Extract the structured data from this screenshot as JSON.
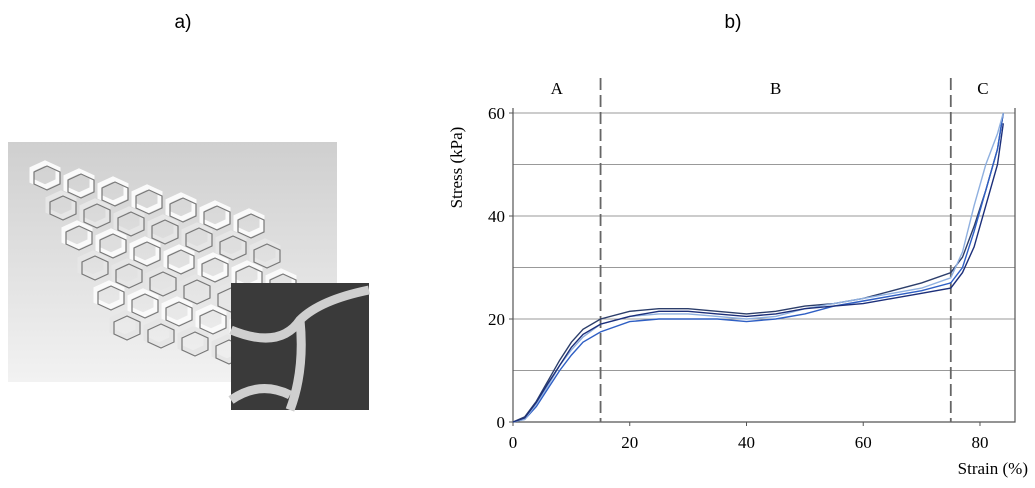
{
  "panels": [
    "a)",
    "b)"
  ],
  "chart_data": {
    "type": "line",
    "x_label": "Strain (%)",
    "y_label": "Stress (kPa)",
    "x": [
      0,
      2,
      4,
      6,
      8,
      10,
      12,
      15,
      20,
      25,
      30,
      35,
      40,
      45,
      50,
      55,
      60,
      65,
      70,
      75,
      77,
      79,
      81,
      83,
      84
    ],
    "series": [
      {
        "color": "#2c3e6b",
        "values": [
          0,
          1,
          4,
          8,
          12,
          15.5,
          18,
          20,
          21.5,
          22,
          22,
          21.5,
          21,
          21.5,
          22.5,
          23,
          24,
          25.5,
          27,
          29,
          32,
          38,
          45,
          53,
          60
        ]
      },
      {
        "color": "#2f5fc4",
        "values": [
          0,
          0.5,
          3,
          6.5,
          10,
          13,
          15.5,
          17.5,
          19.5,
          20,
          20,
          20,
          19.5,
          20,
          21,
          22.5,
          23.5,
          24.5,
          25.5,
          27,
          30,
          37,
          45,
          53,
          60
        ]
      },
      {
        "color": "#8fb0e0",
        "values": [
          0,
          0.5,
          3.5,
          7,
          11,
          14,
          16.5,
          19,
          20.5,
          21,
          21,
          20.5,
          20,
          20.5,
          22,
          23,
          24,
          25,
          26,
          28,
          33,
          42,
          50,
          56,
          60
        ]
      },
      {
        "color": "#1c2f7a",
        "values": [
          0,
          0.8,
          3.8,
          7.5,
          11,
          14.5,
          17,
          19,
          20.5,
          21.5,
          21.5,
          21,
          20.5,
          21,
          22,
          22.5,
          23,
          24,
          25,
          26,
          29,
          34,
          42,
          50,
          58
        ]
      }
    ],
    "xlim": [
      0,
      86
    ],
    "xticks": [
      0,
      20,
      40,
      60,
      80
    ],
    "ylim": [
      0,
      60
    ],
    "yticks": [
      0,
      20,
      40,
      60
    ],
    "grid_lines": [
      10,
      20,
      30,
      40,
      50,
      60
    ],
    "boundaries": [
      15,
      75
    ],
    "regions": [
      "A",
      "B",
      "C"
    ]
  }
}
